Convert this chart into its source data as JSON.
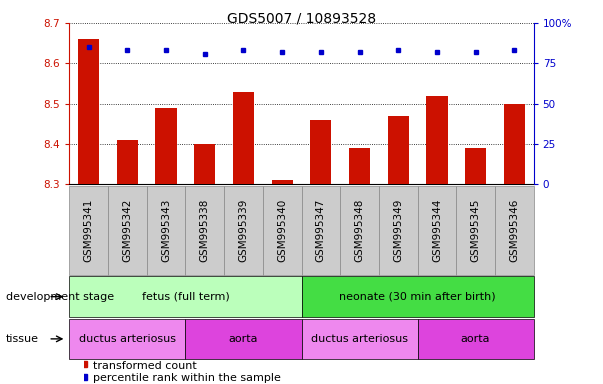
{
  "title": "GDS5007 / 10893528",
  "samples": [
    "GSM995341",
    "GSM995342",
    "GSM995343",
    "GSM995338",
    "GSM995339",
    "GSM995340",
    "GSM995347",
    "GSM995348",
    "GSM995349",
    "GSM995344",
    "GSM995345",
    "GSM995346"
  ],
  "bar_values": [
    8.66,
    8.41,
    8.49,
    8.4,
    8.53,
    8.31,
    8.46,
    8.39,
    8.47,
    8.52,
    8.39,
    8.5
  ],
  "percentile_values": [
    85,
    83,
    83,
    81,
    83,
    82,
    82,
    82,
    83,
    82,
    82,
    83
  ],
  "ylim_left": [
    8.3,
    8.7
  ],
  "ylim_right": [
    0,
    100
  ],
  "yticks_left": [
    8.3,
    8.4,
    8.5,
    8.6,
    8.7
  ],
  "yticks_right": [
    0,
    25,
    50,
    75,
    100
  ],
  "bar_color": "#cc1100",
  "dot_color": "#0000cc",
  "grid_color": "#000000",
  "dev_stage_groups": [
    {
      "label": "fetus (full term)",
      "start": 0,
      "end": 6,
      "color": "#bbffbb"
    },
    {
      "label": "neonate (30 min after birth)",
      "start": 6,
      "end": 12,
      "color": "#44dd44"
    }
  ],
  "tissue_groups": [
    {
      "label": "ductus arteriosus",
      "start": 0,
      "end": 3,
      "color": "#ee88ee"
    },
    {
      "label": "aorta",
      "start": 3,
      "end": 6,
      "color": "#dd44dd"
    },
    {
      "label": "ductus arteriosus",
      "start": 6,
      "end": 9,
      "color": "#ee88ee"
    },
    {
      "label": "aorta",
      "start": 9,
      "end": 12,
      "color": "#dd44dd"
    }
  ],
  "legend_items": [
    {
      "label": "transformed count",
      "color": "#cc1100",
      "marker": "s"
    },
    {
      "label": "percentile rank within the sample",
      "color": "#0000cc",
      "marker": "s"
    }
  ],
  "title_fontsize": 10,
  "tick_fontsize": 7.5,
  "annot_fontsize": 8,
  "bar_width": 0.55,
  "sample_box_color": "#cccccc",
  "sample_box_edge": "#888888"
}
